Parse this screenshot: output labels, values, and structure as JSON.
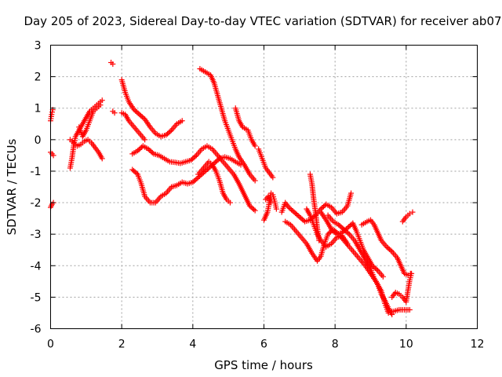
{
  "chart_data": {
    "type": "scatter",
    "title": "Day 205 of 2023, Sidereal Day-to-day VTEC variation (SDTVAR) for receiver ab07",
    "xlabel": "GPS time / hours",
    "ylabel": "SDTVAR / TECUs",
    "xlim": [
      0,
      12
    ],
    "ylim": [
      -6,
      3
    ],
    "xticks": [
      "0",
      "2",
      "4",
      "6",
      "8",
      "10",
      "12"
    ],
    "yticks": [
      "-6",
      "-5",
      "-4",
      "-3",
      "-2",
      "-1",
      "0",
      "1",
      "2",
      "3"
    ],
    "grid": true,
    "marker": "plus",
    "color": "#ff0000",
    "series": [
      {
        "tracks": [
          [
            [
              0.0,
              0.6
            ],
            [
              0.03,
              0.8
            ],
            [
              0.06,
              0.95
            ]
          ],
          [
            [
              0.0,
              -0.4
            ],
            [
              0.04,
              -0.45
            ],
            [
              0.08,
              -0.5
            ]
          ],
          [
            [
              0.0,
              -2.15
            ],
            [
              0.04,
              -2.05
            ],
            [
              0.08,
              -2.0
            ]
          ],
          [
            [
              0.55,
              -0.9
            ],
            [
              0.6,
              -0.6
            ],
            [
              0.65,
              -0.2
            ],
            [
              0.7,
              0.1
            ],
            [
              0.8,
              0.3
            ],
            [
              0.9,
              0.5
            ],
            [
              1.0,
              0.7
            ],
            [
              1.1,
              0.9
            ],
            [
              1.2,
              1.0
            ],
            [
              1.3,
              1.1
            ],
            [
              1.4,
              1.2
            ],
            [
              1.45,
              1.25
            ]
          ],
          [
            [
              0.55,
              0.0
            ],
            [
              0.65,
              -0.1
            ],
            [
              0.75,
              -0.2
            ],
            [
              0.85,
              -0.15
            ],
            [
              0.95,
              -0.05
            ],
            [
              1.05,
              0.0
            ],
            [
              1.15,
              -0.1
            ],
            [
              1.25,
              -0.25
            ],
            [
              1.35,
              -0.4
            ],
            [
              1.45,
              -0.6
            ]
          ],
          [
            [
              0.8,
              0.4
            ],
            [
              0.9,
              0.1
            ],
            [
              1.0,
              0.3
            ],
            [
              1.1,
              0.6
            ],
            [
              1.2,
              0.9
            ],
            [
              1.3,
              1.0
            ],
            [
              1.4,
              1.1
            ]
          ],
          [
            [
              1.7,
              2.45
            ],
            [
              1.75,
              2.4
            ]
          ],
          [
            [
              1.75,
              0.9
            ],
            [
              1.8,
              0.85
            ]
          ]
        ]
      },
      {
        "tracks": [
          [
            [
              2.0,
              1.9
            ],
            [
              2.1,
              1.5
            ],
            [
              2.2,
              1.2
            ],
            [
              2.35,
              0.95
            ],
            [
              2.5,
              0.8
            ],
            [
              2.65,
              0.65
            ],
            [
              2.8,
              0.4
            ],
            [
              2.95,
              0.2
            ],
            [
              3.1,
              0.1
            ],
            [
              3.25,
              0.15
            ],
            [
              3.4,
              0.3
            ],
            [
              3.55,
              0.5
            ],
            [
              3.7,
              0.6
            ]
          ],
          [
            [
              2.0,
              0.85
            ],
            [
              2.1,
              0.8
            ],
            [
              2.2,
              0.6
            ],
            [
              2.35,
              0.4
            ],
            [
              2.5,
              0.2
            ],
            [
              2.65,
              0.0
            ]
          ],
          [
            [
              2.3,
              -0.45
            ],
            [
              2.45,
              -0.35
            ],
            [
              2.6,
              -0.2
            ],
            [
              2.75,
              -0.3
            ],
            [
              2.9,
              -0.45
            ],
            [
              3.05,
              -0.5
            ],
            [
              3.2,
              -0.6
            ],
            [
              3.35,
              -0.7
            ],
            [
              3.5,
              -0.72
            ],
            [
              3.65,
              -0.75
            ],
            [
              3.8,
              -0.7
            ],
            [
              3.95,
              -0.65
            ],
            [
              4.1,
              -0.5
            ],
            [
              4.25,
              -0.3
            ],
            [
              4.4,
              -0.2
            ],
            [
              4.55,
              -0.3
            ],
            [
              4.7,
              -0.5
            ],
            [
              4.85,
              -0.7
            ],
            [
              5.0,
              -0.9
            ],
            [
              5.15,
              -1.1
            ],
            [
              5.3,
              -1.4
            ],
            [
              5.45,
              -1.75
            ],
            [
              5.6,
              -2.1
            ],
            [
              5.75,
              -2.25
            ]
          ],
          [
            [
              2.3,
              -0.95
            ],
            [
              2.45,
              -1.1
            ],
            [
              2.55,
              -1.4
            ],
            [
              2.65,
              -1.8
            ],
            [
              2.8,
              -2.0
            ],
            [
              2.95,
              -2.0
            ],
            [
              3.1,
              -1.8
            ],
            [
              3.25,
              -1.7
            ],
            [
              3.4,
              -1.5
            ],
            [
              3.55,
              -1.45
            ],
            [
              3.7,
              -1.35
            ],
            [
              3.85,
              -1.4
            ],
            [
              4.0,
              -1.35
            ],
            [
              4.15,
              -1.2
            ],
            [
              4.3,
              -1.05
            ],
            [
              4.45,
              -0.9
            ],
            [
              4.6,
              -0.75
            ],
            [
              4.75,
              -0.6
            ],
            [
              4.9,
              -0.55
            ],
            [
              5.05,
              -0.6
            ],
            [
              5.2,
              -0.7
            ],
            [
              5.35,
              -0.8
            ]
          ],
          [
            [
              4.15,
              -1.1
            ],
            [
              4.3,
              -0.9
            ],
            [
              4.45,
              -0.7
            ],
            [
              4.55,
              -0.8
            ],
            [
              4.65,
              -1.0
            ],
            [
              4.75,
              -1.3
            ],
            [
              4.85,
              -1.7
            ],
            [
              4.95,
              -1.9
            ],
            [
              5.05,
              -2.0
            ]
          ]
        ]
      },
      {
        "tracks": [
          [
            [
              4.2,
              2.25
            ],
            [
              4.35,
              2.15
            ],
            [
              4.5,
              2.05
            ],
            [
              4.6,
              1.8
            ],
            [
              4.7,
              1.4
            ],
            [
              4.8,
              1.0
            ],
            [
              4.9,
              0.6
            ],
            [
              5.0,
              0.3
            ],
            [
              5.1,
              0.0
            ],
            [
              5.2,
              -0.3
            ],
            [
              5.3,
              -0.55
            ],
            [
              5.45,
              -0.8
            ],
            [
              5.6,
              -1.1
            ],
            [
              5.75,
              -1.3
            ]
          ],
          [
            [
              5.2,
              1.0
            ],
            [
              5.3,
              0.6
            ],
            [
              5.4,
              0.4
            ],
            [
              5.55,
              0.3
            ],
            [
              5.65,
              0.0
            ],
            [
              5.75,
              -0.2
            ]
          ],
          [
            [
              5.85,
              -0.3
            ],
            [
              5.95,
              -0.6
            ],
            [
              6.05,
              -0.9
            ],
            [
              6.15,
              -1.05
            ],
            [
              6.25,
              -1.2
            ]
          ],
          [
            [
              6.0,
              -2.55
            ],
            [
              6.1,
              -2.3
            ],
            [
              6.15,
              -2.0
            ],
            [
              6.2,
              -1.7
            ],
            [
              6.25,
              -1.75
            ],
            [
              6.3,
              -1.95
            ],
            [
              6.35,
              -2.2
            ]
          ],
          [
            [
              6.05,
              -1.9
            ],
            [
              6.12,
              -1.8
            ],
            [
              6.2,
              -2.0
            ]
          ]
        ]
      },
      {
        "tracks": [
          [
            [
              6.5,
              -2.3
            ],
            [
              6.6,
              -2.0
            ],
            [
              6.7,
              -2.15
            ],
            [
              6.85,
              -2.3
            ],
            [
              7.0,
              -2.45
            ],
            [
              7.15,
              -2.6
            ],
            [
              7.3,
              -2.55
            ],
            [
              7.45,
              -2.4
            ],
            [
              7.6,
              -2.2
            ],
            [
              7.75,
              -2.05
            ],
            [
              7.9,
              -2.15
            ],
            [
              8.05,
              -2.35
            ],
            [
              8.2,
              -2.3
            ],
            [
              8.35,
              -2.1
            ],
            [
              8.45,
              -1.7
            ]
          ],
          [
            [
              6.6,
              -2.6
            ],
            [
              6.75,
              -2.7
            ],
            [
              6.9,
              -2.9
            ],
            [
              7.05,
              -3.1
            ],
            [
              7.2,
              -3.3
            ],
            [
              7.35,
              -3.6
            ],
            [
              7.5,
              -3.85
            ],
            [
              7.6,
              -3.7
            ],
            [
              7.7,
              -3.3
            ],
            [
              7.8,
              -3.0
            ],
            [
              7.95,
              -2.85
            ],
            [
              8.1,
              -3.0
            ],
            [
              8.25,
              -3.2
            ],
            [
              8.4,
              -3.4
            ],
            [
              8.55,
              -3.6
            ],
            [
              8.7,
              -3.8
            ],
            [
              8.85,
              -4.0
            ],
            [
              9.0,
              -4.25
            ],
            [
              9.15,
              -4.5
            ],
            [
              9.3,
              -4.8
            ],
            [
              9.4,
              -5.2
            ],
            [
              9.5,
              -5.5
            ]
          ],
          [
            [
              7.3,
              -1.1
            ],
            [
              7.35,
              -1.4
            ],
            [
              7.4,
              -1.9
            ],
            [
              7.45,
              -2.3
            ],
            [
              7.5,
              -2.8
            ],
            [
              7.55,
              -3.2
            ]
          ],
          [
            [
              7.6,
              -2.3
            ],
            [
              7.75,
              -2.55
            ],
            [
              7.9,
              -2.85
            ],
            [
              8.05,
              -3.0
            ],
            [
              8.2,
              -2.95
            ],
            [
              8.35,
              -2.8
            ],
            [
              8.5,
              -2.65
            ],
            [
              8.6,
              -2.9
            ],
            [
              8.7,
              -3.2
            ],
            [
              8.8,
              -3.5
            ],
            [
              8.9,
              -3.7
            ],
            [
              9.05,
              -4.0
            ],
            [
              9.2,
              -4.15
            ],
            [
              9.35,
              -4.35
            ]
          ],
          [
            [
              7.8,
              -2.4
            ],
            [
              7.95,
              -2.6
            ],
            [
              8.1,
              -2.7
            ],
            [
              8.25,
              -2.85
            ],
            [
              8.4,
              -3.0
            ],
            [
              8.55,
              -3.2
            ],
            [
              8.7,
              -3.5
            ],
            [
              8.85,
              -3.8
            ],
            [
              9.0,
              -4.1
            ],
            [
              9.1,
              -4.4
            ],
            [
              9.2,
              -4.6
            ],
            [
              9.3,
              -4.9
            ],
            [
              9.4,
              -5.1
            ],
            [
              9.5,
              -5.35
            ],
            [
              9.6,
              -5.55
            ]
          ],
          [
            [
              8.75,
              -2.7
            ],
            [
              8.9,
              -2.6
            ],
            [
              9.0,
              -2.55
            ],
            [
              9.1,
              -2.7
            ],
            [
              9.2,
              -2.95
            ],
            [
              9.3,
              -3.2
            ],
            [
              9.45,
              -3.4
            ],
            [
              9.6,
              -3.55
            ],
            [
              9.75,
              -3.75
            ],
            [
              9.85,
              -4.0
            ],
            [
              9.95,
              -4.25
            ],
            [
              10.05,
              -4.3
            ],
            [
              10.12,
              -4.25
            ]
          ],
          [
            [
              9.5,
              -5.45
            ],
            [
              9.65,
              -5.45
            ],
            [
              9.8,
              -5.4
            ],
            [
              9.95,
              -5.4
            ],
            [
              10.1,
              -5.4
            ]
          ],
          [
            [
              9.6,
              -5.0
            ],
            [
              9.7,
              -4.85
            ],
            [
              9.8,
              -4.9
            ],
            [
              9.9,
              -5.0
            ],
            [
              10.0,
              -5.15
            ],
            [
              10.05,
              -4.8
            ],
            [
              10.1,
              -4.45
            ],
            [
              10.15,
              -4.25
            ]
          ],
          [
            [
              9.9,
              -2.6
            ],
            [
              10.0,
              -2.45
            ],
            [
              10.1,
              -2.35
            ],
            [
              10.18,
              -2.3
            ]
          ],
          [
            [
              7.2,
              -2.2
            ],
            [
              7.3,
              -2.4
            ],
            [
              7.4,
              -2.7
            ],
            [
              7.5,
              -3.0
            ],
            [
              7.6,
              -3.2
            ],
            [
              7.75,
              -3.4
            ],
            [
              7.9,
              -3.3
            ],
            [
              8.05,
              -3.1
            ],
            [
              8.2,
              -3.05
            ],
            [
              8.35,
              -3.3
            ]
          ]
        ]
      }
    ]
  }
}
